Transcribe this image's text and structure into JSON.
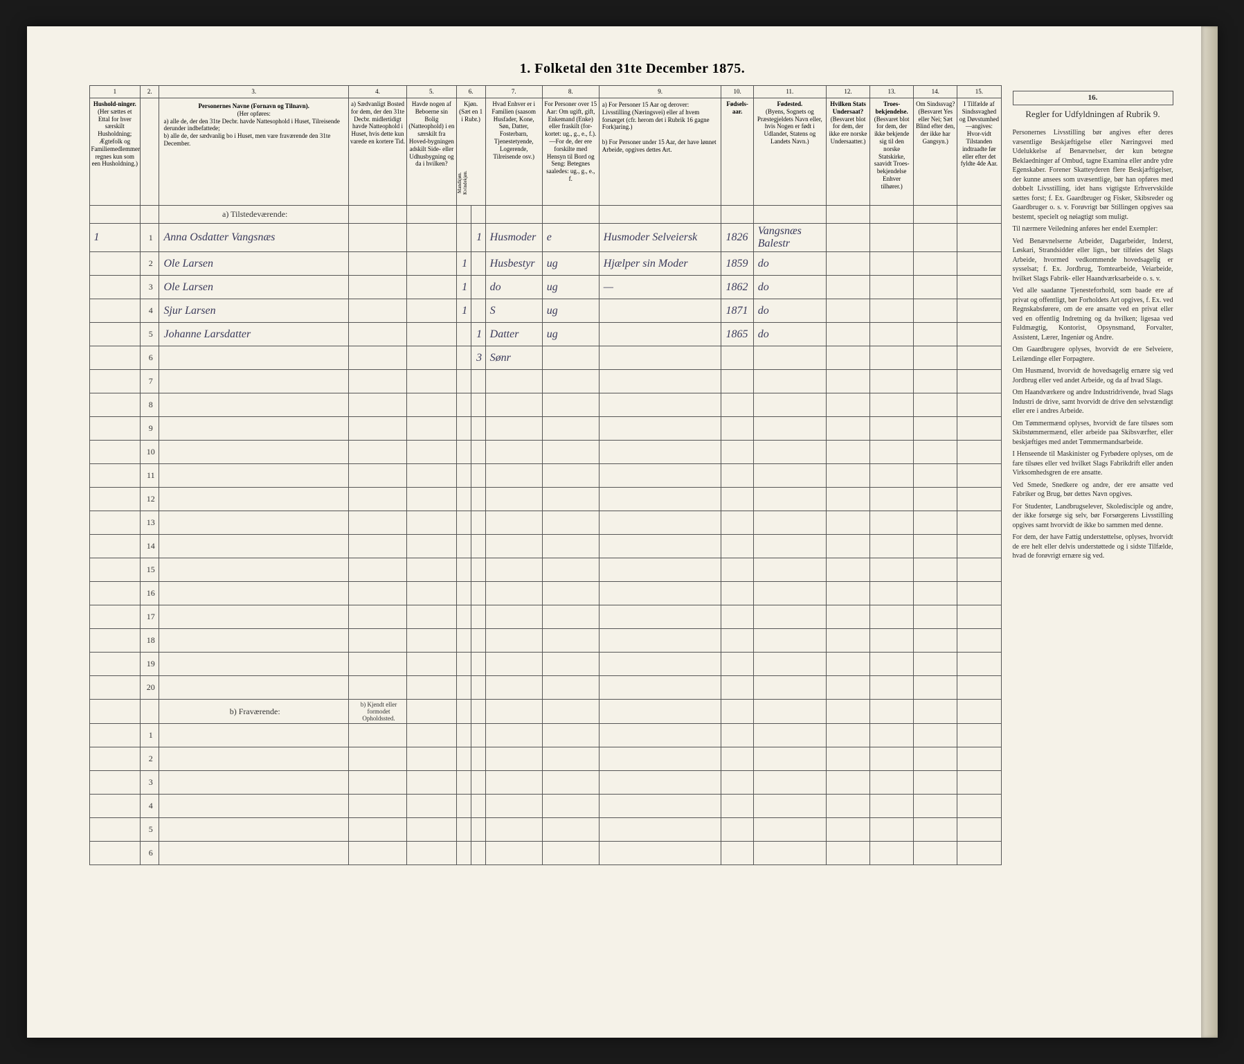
{
  "title": "1.  Folketal  den 31te December 1875.",
  "columns": {
    "nums": [
      "1",
      "2.",
      "3.",
      "4.",
      "5.",
      "6.",
      "7.",
      "8.",
      "9.",
      "10.",
      "11.",
      "12.",
      "13.",
      "14.",
      "15.",
      "16."
    ],
    "h1": "Hushold-ninger.",
    "h1b": "(Her sættes et Ettal for hver særskilt Husholdning; Ægtefolk og Familiemedlemmer regnes kun som een Husholdning.)",
    "h3_title": "Personernes Navne (Fornavn og Tilnavn).",
    "h3_sub": "(Her opføres:",
    "h3_a": "a) alle de, der den 31te Decbr. havde Nattesophold i Huset, Tilreisende derunder indbefattede;",
    "h3_b": "b) alle de, der sædvanlig bo i Huset, men vare fraværende den 31te December.",
    "h4": "a) Sædvanligt Bosted for dem, der den 31te Decbr. midlertidigt havde Natteophold i Huset, hvis dette kun varede en kortere Tid.",
    "h5": "Havde nogen af Beboerne sin Bolig (Natteophold) i en særskilt fra Hoved-bygningen adskilt Side- eller Udhusbygning og da i hvilken?",
    "h6": "Kjøn. (Sæt en 1 i Rubr.)",
    "h6a": "Mandkjøn.",
    "h6b": "Kvindekjøn.",
    "h7": "Hvad Enhver er i Familien (saasom Husfader, Kone, Søn, Datter, Fosterbarn, Tjenestetyende, Logerende, Tilreisende osv.)",
    "h8": "For Personer over 15 Aar: Om ugift, gift, Enkemand (Enke) eller fraskilt (for-kortet: ug., g., e., f.). —For de, der ere forskilte med Hensyn til Bord og Seng: Betegnes saaledes: ug., g., e., f.",
    "h9_a": "a) For Personer 15 Aar og derover: Livsstilling (Næringsvei) eller af hvem forsørget (cfr. herom det i Rubrik 16 gagne Fork)aring.)",
    "h9_b": "b) For Personer under 15 Aar, der have lønnet Arbeide, opgives dettes Art.",
    "h10": "Fødsels-aar.",
    "h11": "Fødested.",
    "h11b": "(Byens, Sognets og Præstegjeldets Navn eller, hvis Nogen er født i Udlandet, Statens og Landets Navn.)",
    "h12": "Hvilken Stats Undersaat?",
    "h12b": "(Besvaret blot for dem, der ikke ere norske Undersaatter.)",
    "h13": "Troes-bekjendelse.",
    "h13b": "(Besvaret blot for dem, der ikke bekjende sig til den norske Statskirke, saavidt Troes-bekjendelse Enhver tilhører.)",
    "h14": "Om Sindssvag? (Besvaret Yes eller Nei; Sæt Blind efter den, der ikke har Gangsyn.)",
    "h15": "I Tilfælde af Sindssvaghed og Døvstumhed —angives: Hvor-vidt Tilstanden indtraadte før eller efter det fyldte 4de Aar.",
    "h16_title": "Regler for Udfyldningen af Rubrik 9."
  },
  "section_a": "a) Tilstedeværende:",
  "section_b": "b) Fraværende:",
  "section_b_col4": "b) Kjendt eller formodet Opholdssted.",
  "rows": [
    {
      "n": "1",
      "hh": "1",
      "name": "Anna Osdatter Vangsnæs",
      "c6a": "",
      "c6b": "1",
      "c7": "Husmoder",
      "c8": "e",
      "c9": "Husmoder Selveiersk",
      "c10": "1826",
      "c11": "Vangsnæs Balestr"
    },
    {
      "n": "2",
      "hh": "",
      "name": "Ole Larsen",
      "c6a": "1",
      "c6b": "",
      "c7": "Husbestyr",
      "c8": "ug",
      "c9": "Hjælper sin Moder",
      "c10": "1859",
      "c11": "do"
    },
    {
      "n": "3",
      "hh": "",
      "name": "Ole Larsen",
      "c6a": "1",
      "c6b": "",
      "c7": "do",
      "c8": "ug",
      "c9": "—",
      "c10": "1862",
      "c11": "do"
    },
    {
      "n": "4",
      "hh": "",
      "name": "Sjur Larsen",
      "c6a": "1",
      "c6b": "",
      "c7": "S",
      "c8": "ug",
      "c9": "",
      "c10": "1871",
      "c11": "do"
    },
    {
      "n": "5",
      "hh": "",
      "name": "Johanne Larsdatter",
      "c6a": "",
      "c6b": "1",
      "c7": "Datter",
      "c8": "ug",
      "c9": "",
      "c10": "1865",
      "c11": "do"
    },
    {
      "n": "6",
      "hh": "",
      "name": "",
      "c6a": "",
      "c6b": "3",
      "c7": "Sønr",
      "c8": "",
      "c9": "",
      "c10": "",
      "c11": ""
    }
  ],
  "empty_a": [
    "7",
    "8",
    "9",
    "10",
    "11",
    "12",
    "13",
    "14",
    "15",
    "16",
    "17",
    "18",
    "19",
    "20"
  ],
  "empty_b": [
    "1",
    "2",
    "3",
    "4",
    "5",
    "6"
  ],
  "instructions": {
    "title": "",
    "paras": [
      "Personernes Livsstilling bør angives efter deres væsentlige Beskjæftigelse eller Næringsvei med Udelukkelse af Benævnelser, der kun betegne Beklaedninger af Ombud, tagne Examina eller andre ydre Egenskaber. Forener Skatteyderen flere Beskjæftigelser, der kunne ansees som uvæsentlige, bør han opføres med dobbelt Livsstilling, idet hans vigtigste Erhvervskilde sættes forst; f. Ex. Gaardbruger og Fisker, Skibsreder og Gaardbruger o. s. v. Forøvrigt bør Stillingen opgives saa bestemt, specielt og nøiagtigt som muligt.",
      "Til nærmere Veiledning anføres her endel Exempler:",
      "Ved Benævnelserne Arbeider, Dagarbeider, Inderst, Løskari, Strandsidder eller lign., bør tilføies det Slags Arbeide, hvormed vedkommende hovedsagelig er sysselsat; f. Ex. Jordbrug, Tomtearbeide, Veiarbeide, hvilket Slags Fabrik- eller Haandværksarbeide o. s. v.",
      "Ved alle saadanne Tjenesteforhold, som baade ere af privat og offentligt, bør Forholdets Art opgives, f. Ex. ved Regnskabsførere, om de ere ansatte ved en privat eller ved en offentlig Indretning og da hvilken; ligesaa ved Fuldmægtig, Kontorist, Opsynsmand, Forvalter, Assistent, Lærer, Ingeniør og Andre.",
      "Om Gaardbrugere oplyses, hvorvidt de ere Selveiere, Leilændinge eller Forpagtere.",
      "Om Husmænd, hvorvidt de hovedsagelig ernære sig ved Jordbrug eller ved andet Arbeide, og da af hvad Slags.",
      "Om Haandværkere og andre Industridrivende, hvad Slags Industri de drive, samt hvorvidt de drive den selvstændigt eller ere i andres Arbeide.",
      "Om Tømmermænd oplyses, hvorvidt de fare tilsøes som Skibstømmermænd, eller arbeide paa Skibsværfter, eller beskjæftiges med andet Tømmermandsarbeide.",
      "I Henseende til Maskinister og Fyrbødere oplyses, om de fare tilsøes eller ved hvilket Slags Fabrikdrift eller anden Virksomhedsgren de ere ansatte.",
      "Ved Smede, Snedkere og andre, der ere ansatte ved Fabriker og Brug, bør dettes Navn opgives.",
      "For Studenter, Landbrugselever, Skoledisciple og andre, der ikke forsørge sig selv, bør Forsørgerens Livsstilling opgives samt hvorvidt de ikke bo sammen med denne.",
      "For dem, der have Fattig understøttelse, oplyses, hvorvidt de ere helt eller delvis understøttede og i sidste Tilfælde, hvad de forøvrigt ernære sig ved."
    ]
  }
}
